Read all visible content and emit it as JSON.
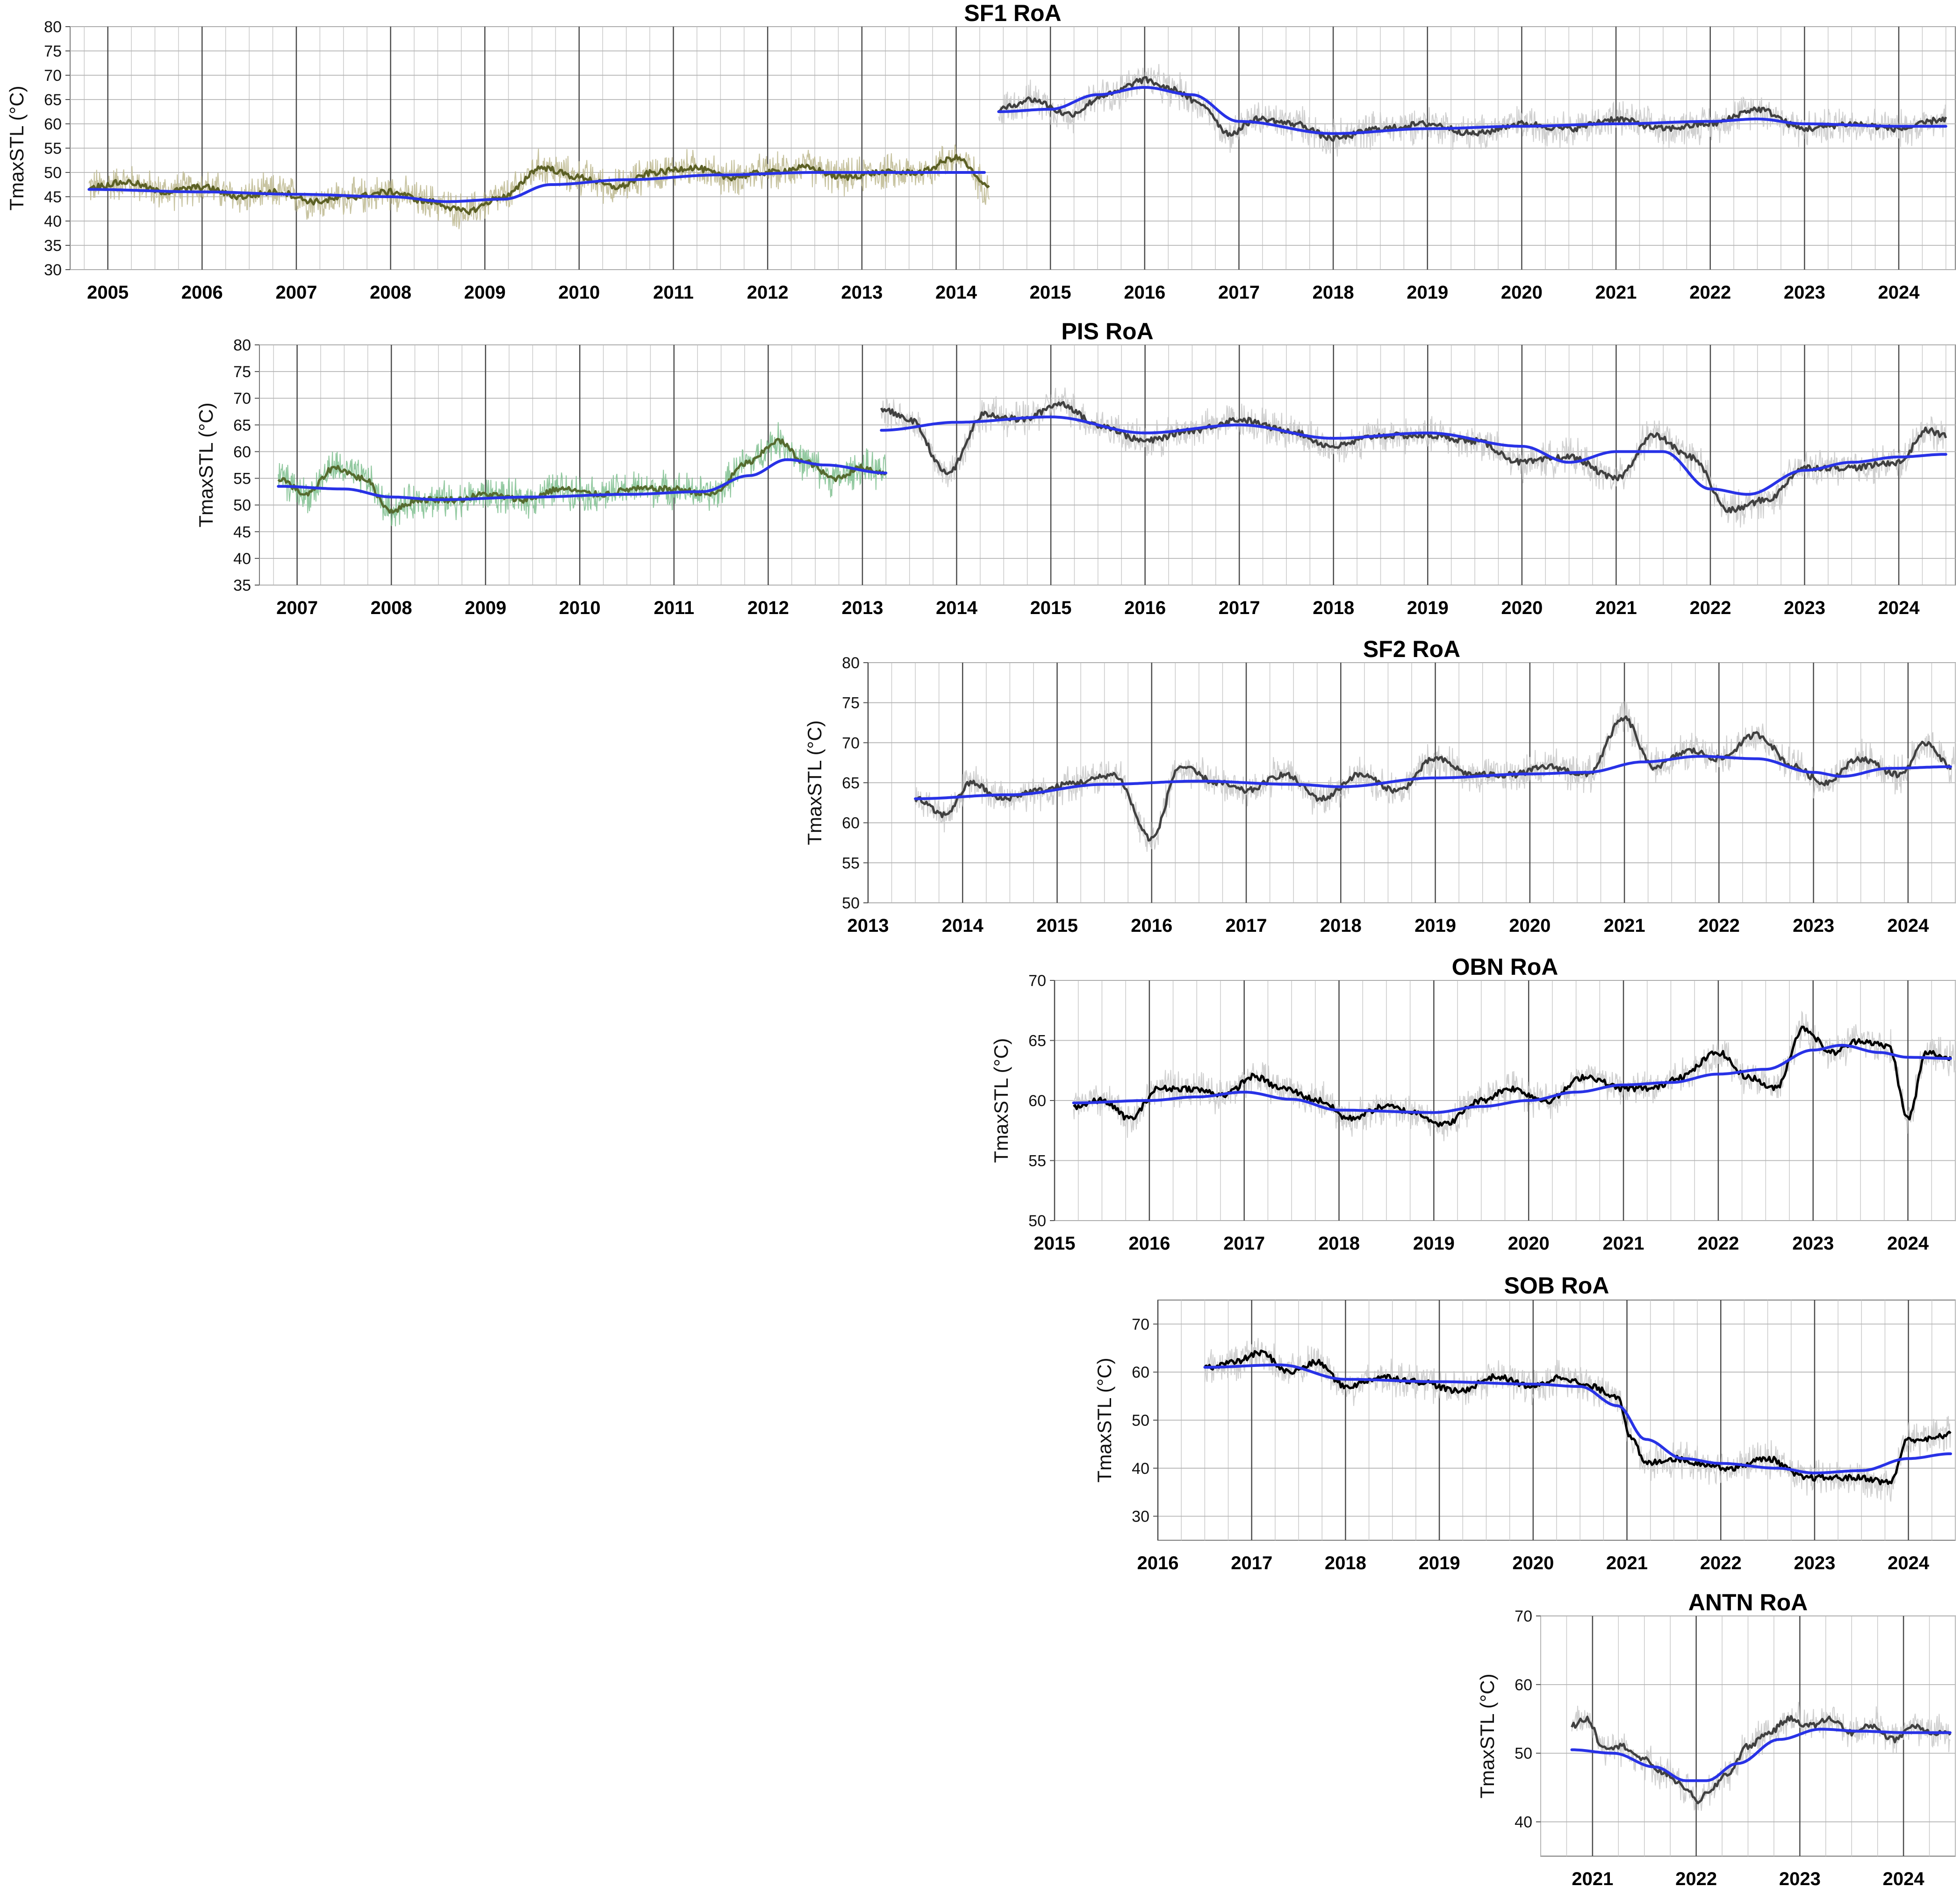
{
  "chart_data": [
    {
      "type": "line",
      "title": "SF1 RoA",
      "ylabel": "TmaxSTL (°C)",
      "xlabel": "",
      "ylim": [
        30,
        80
      ],
      "yticks": [
        30,
        35,
        40,
        45,
        50,
        55,
        60,
        65,
        70,
        75,
        80
      ],
      "xlim": [
        2004.6,
        2024.6
      ],
      "xticks": [
        "2005",
        "2006",
        "2007",
        "2008",
        "2009",
        "2010",
        "2011",
        "2012",
        "2013",
        "2014",
        "2015",
        "2016",
        "2017",
        "2018",
        "2019",
        "2020",
        "2021",
        "2022",
        "2023",
        "2024"
      ],
      "smooth_color": "#2832e6",
      "series": [
        {
          "name": "daily raw (segment 1)",
          "color": "#bdb98f",
          "role": "noise",
          "x": [
            2004.8,
            2014.35
          ]
        },
        {
          "name": "running mean (segment 1)",
          "color": "#5c6025",
          "role": "mean",
          "x": [
            2004.8,
            2005.2,
            2005.6,
            2006.0,
            2006.4,
            2006.8,
            2007.2,
            2007.6,
            2008.0,
            2008.4,
            2008.8,
            2009.2,
            2009.6,
            2010.0,
            2010.4,
            2010.8,
            2011.2,
            2011.6,
            2012.0,
            2012.4,
            2012.8,
            2013.2,
            2013.6,
            2014.0,
            2014.35
          ],
          "values": [
            47,
            48,
            46,
            47,
            45,
            46,
            44,
            45,
            46,
            44,
            42,
            45,
            51,
            49,
            47,
            50,
            51,
            49,
            50,
            51,
            49,
            50,
            50,
            53,
            47
          ]
        },
        {
          "name": "smoothed trend (segment 1)",
          "color": "#2832e6",
          "role": "smooth",
          "x": [
            2004.8,
            2006.0,
            2007.0,
            2008.0,
            2008.6,
            2009.2,
            2009.7,
            2010.5,
            2011.5,
            2012.5,
            2013.5,
            2014.3
          ],
          "values": [
            46.5,
            46,
            45.5,
            45,
            44,
            44.5,
            47.5,
            48.5,
            49.5,
            50,
            50,
            50
          ]
        },
        {
          "name": "daily raw (segment 2)",
          "color": "#c8c8c8",
          "role": "noise",
          "x": [
            2014.45,
            2024.5
          ]
        },
        {
          "name": "running mean (segment 2)",
          "color": "#404040",
          "role": "mean",
          "x": [
            2014.45,
            2014.8,
            2015.2,
            2015.6,
            2016.0,
            2016.3,
            2016.6,
            2016.9,
            2017.2,
            2017.6,
            2018.0,
            2018.5,
            2019.0,
            2019.5,
            2020.0,
            2020.5,
            2021.0,
            2021.5,
            2022.0,
            2022.5,
            2023.0,
            2023.5,
            2024.0,
            2024.5
          ],
          "values": [
            63,
            65,
            62,
            66,
            69,
            67,
            64,
            58,
            61,
            60,
            57,
            59,
            60,
            58,
            60,
            59,
            61,
            59,
            60,
            63,
            59,
            60,
            59,
            61
          ]
        },
        {
          "name": "smoothed trend (segment 2)",
          "color": "#2832e6",
          "role": "smooth",
          "x": [
            2014.45,
            2015.0,
            2015.5,
            2016.0,
            2016.5,
            2017.0,
            2018.0,
            2019.0,
            2020.0,
            2021.0,
            2022.0,
            2022.5,
            2023.0,
            2024.0,
            2024.5
          ],
          "values": [
            62.5,
            63,
            66,
            67.5,
            66,
            60.5,
            58,
            59,
            59.5,
            60,
            60.5,
            61,
            60,
            59.5,
            59.5
          ]
        }
      ]
    },
    {
      "type": "line",
      "title": "PIS RoA",
      "ylabel": "TmaxSTL (°C)",
      "xlabel": "",
      "ylim": [
        35,
        80
      ],
      "yticks": [
        35,
        40,
        45,
        50,
        55,
        60,
        65,
        70,
        75,
        80
      ],
      "xlim": [
        2006.6,
        2024.6
      ],
      "xticks": [
        "2007",
        "2008",
        "2009",
        "2010",
        "2011",
        "2012",
        "2013",
        "2014",
        "2015",
        "2016",
        "2017",
        "2018",
        "2019",
        "2020",
        "2021",
        "2022",
        "2023",
        "2024"
      ],
      "smooth_color": "#2832e6",
      "series": [
        {
          "name": "daily raw (segment 1)",
          "color": "#7fbf8f",
          "role": "noise",
          "x": [
            2006.8,
            2013.25
          ]
        },
        {
          "name": "running mean (segment 1)",
          "color": "#556b2f",
          "role": "mean",
          "x": [
            2006.8,
            2007.1,
            2007.4,
            2007.7,
            2008.0,
            2008.3,
            2008.7,
            2009.0,
            2009.4,
            2009.8,
            2010.2,
            2010.6,
            2011.0,
            2011.4,
            2011.8,
            2012.1,
            2012.4,
            2012.7,
            2013.0,
            2013.25
          ],
          "values": [
            55,
            52,
            57,
            55,
            49,
            51,
            51,
            52,
            51,
            53,
            52,
            53,
            53,
            52,
            58,
            62,
            58,
            55,
            57,
            56
          ]
        },
        {
          "name": "smoothed trend (segment 1)",
          "color": "#2832e6",
          "role": "smooth",
          "x": [
            2006.8,
            2007.5,
            2008.0,
            2008.5,
            2009.5,
            2010.5,
            2011.3,
            2011.8,
            2012.2,
            2012.6,
            2013.25
          ],
          "values": [
            53.5,
            53,
            51.5,
            51,
            51.5,
            52,
            52.5,
            55.5,
            58.5,
            57.5,
            56
          ]
        },
        {
          "name": "daily raw (segment 2)",
          "color": "#c8c8c8",
          "role": "noise",
          "x": [
            2013.2,
            2024.5
          ]
        },
        {
          "name": "running mean (segment 2)",
          "color": "#404040",
          "role": "mean",
          "x": [
            2013.2,
            2013.5,
            2013.9,
            2014.3,
            2014.7,
            2015.1,
            2015.5,
            2016.0,
            2016.5,
            2017.0,
            2017.5,
            2018.0,
            2018.5,
            2019.0,
            2019.5,
            2020.0,
            2020.5,
            2021.0,
            2021.4,
            2021.8,
            2022.2,
            2022.6,
            2023.0,
            2023.5,
            2024.0,
            2024.3,
            2024.5
          ],
          "values": [
            68,
            66,
            56,
            67,
            66,
            69,
            65,
            62,
            64,
            66,
            64,
            61,
            63,
            63,
            62,
            58,
            59,
            55,
            63,
            59,
            49,
            51,
            57,
            57,
            58,
            64,
            63
          ]
        },
        {
          "name": "smoothed trend (segment 2)",
          "color": "#2832e6",
          "role": "smooth",
          "x": [
            2013.2,
            2014.0,
            2015.0,
            2016.0,
            2017.0,
            2018.0,
            2019.0,
            2020.0,
            2020.5,
            2021.0,
            2021.5,
            2022.0,
            2022.4,
            2023.0,
            2023.5,
            2024.0,
            2024.5
          ],
          "values": [
            64,
            65.5,
            66.5,
            63.5,
            65,
            62.5,
            63.5,
            61,
            58,
            60,
            60,
            53,
            52,
            56.5,
            58,
            59,
            59.5
          ]
        }
      ]
    },
    {
      "type": "line",
      "title": "SF2 RoA",
      "ylabel": "TmaxSTL (°C)",
      "xlabel": "",
      "ylim": [
        50,
        80
      ],
      "yticks": [
        50,
        55,
        60,
        65,
        70,
        75,
        80
      ],
      "xlim": [
        2013.0,
        2024.5
      ],
      "xticks": [
        "2013",
        "2014",
        "2015",
        "2016",
        "2017",
        "2018",
        "2019",
        "2020",
        "2021",
        "2022",
        "2023",
        "2024"
      ],
      "smooth_color": "#2832e6",
      "series": [
        {
          "name": "daily raw",
          "color": "#c8c8c8",
          "role": "noise",
          "x": [
            2013.5,
            2024.5
          ]
        },
        {
          "name": "running mean",
          "color": "#404040",
          "role": "mean",
          "x": [
            2013.5,
            2013.8,
            2014.1,
            2014.4,
            2014.8,
            2015.2,
            2015.6,
            2016.0,
            2016.3,
            2016.7,
            2017.0,
            2017.4,
            2017.8,
            2018.2,
            2018.6,
            2019.0,
            2019.4,
            2019.8,
            2020.2,
            2020.6,
            2021.0,
            2021.3,
            2021.7,
            2022.0,
            2022.4,
            2022.8,
            2023.1,
            2023.5,
            2023.9,
            2024.2,
            2024.45
          ],
          "values": [
            63,
            61,
            65,
            63,
            64,
            65,
            66,
            58,
            67,
            65,
            64,
            66,
            63,
            66,
            64,
            68,
            66,
            66,
            67,
            66,
            73,
            67,
            69,
            68,
            71,
            67,
            65,
            68,
            66,
            70,
            67
          ]
        },
        {
          "name": "smoothed trend",
          "color": "#2832e6",
          "role": "smooth",
          "x": [
            2013.5,
            2014.5,
            2015.5,
            2016.5,
            2017.5,
            2018.0,
            2019.0,
            2020.0,
            2020.6,
            2021.2,
            2021.8,
            2022.4,
            2023.0,
            2023.3,
            2023.8,
            2024.45
          ],
          "values": [
            63,
            63.5,
            64.8,
            65.2,
            64.8,
            64.5,
            65.6,
            66.1,
            66.3,
            67.6,
            68.3,
            68,
            66.3,
            65.8,
            66.8,
            67
          ]
        }
      ]
    },
    {
      "type": "line",
      "title": "OBN RoA",
      "ylabel": "TmaxSTL (°C)",
      "xlabel": "",
      "ylim": [
        50,
        70
      ],
      "yticks": [
        50,
        55,
        60,
        65,
        70
      ],
      "xlim": [
        2015.0,
        2024.5
      ],
      "xticks": [
        "2015",
        "2016",
        "2017",
        "2018",
        "2019",
        "2020",
        "2021",
        "2022",
        "2023",
        "2024"
      ],
      "smooth_color": "#2832e6",
      "series": [
        {
          "name": "daily raw",
          "color": "#c8c8c8",
          "role": "noise",
          "x": [
            2015.2,
            2024.5
          ]
        },
        {
          "name": "running mean",
          "color": "#000000",
          "role": "mean",
          "x": [
            2015.2,
            2015.5,
            2015.8,
            2016.1,
            2016.4,
            2016.8,
            2017.1,
            2017.4,
            2017.8,
            2018.1,
            2018.5,
            2018.8,
            2019.1,
            2019.5,
            2019.8,
            2020.2,
            2020.6,
            2021.0,
            2021.3,
            2021.6,
            2022.0,
            2022.3,
            2022.6,
            2022.9,
            2023.2,
            2023.5,
            2023.8,
            2024.0,
            2024.2,
            2024.45
          ],
          "values": [
            59.5,
            60,
            58.5,
            61,
            61,
            60.5,
            62,
            61,
            60,
            58.5,
            59.5,
            59,
            58,
            60,
            61,
            60,
            62,
            61,
            61,
            62,
            64,
            62,
            61,
            66,
            64,
            65,
            64.5,
            58.5,
            64,
            63.5
          ]
        },
        {
          "name": "smoothed trend",
          "color": "#2832e6",
          "role": "smooth",
          "x": [
            2015.2,
            2016.0,
            2016.5,
            2017.0,
            2017.5,
            2018.0,
            2019.0,
            2019.5,
            2020.0,
            2020.5,
            2021.0,
            2021.5,
            2022.0,
            2022.5,
            2023.0,
            2023.3,
            2023.7,
            2024.0,
            2024.45
          ],
          "values": [
            59.8,
            60,
            60.3,
            60.7,
            60.1,
            59.2,
            59,
            59.5,
            60,
            60.7,
            61.3,
            61.5,
            62.2,
            62.6,
            64.2,
            64.6,
            64,
            63.6,
            63.5
          ]
        }
      ]
    },
    {
      "type": "line",
      "title": "SOB RoA",
      "ylabel": "TmaxSTL (°C)",
      "xlabel": "",
      "ylim": [
        25,
        75
      ],
      "yticks": [
        30,
        40,
        50,
        60,
        70
      ],
      "xlim": [
        2016.0,
        2024.5
      ],
      "xticks": [
        "2016",
        "2017",
        "2018",
        "2019",
        "2020",
        "2021",
        "2022",
        "2023",
        "2024"
      ],
      "smooth_color": "#2832e6",
      "series": [
        {
          "name": "daily raw",
          "color": "#c8c8c8",
          "role": "noise",
          "x": [
            2016.5,
            2024.45
          ]
        },
        {
          "name": "running mean",
          "color": "#000000",
          "role": "mean",
          "x": [
            2016.5,
            2016.8,
            2017.1,
            2017.4,
            2017.7,
            2018.0,
            2018.4,
            2018.8,
            2019.2,
            2019.6,
            2020.0,
            2020.3,
            2020.6,
            2020.9,
            2021.05,
            2021.2,
            2021.5,
            2021.8,
            2022.1,
            2022.5,
            2022.9,
            2023.2,
            2023.5,
            2023.8,
            2024.0,
            2024.2,
            2024.45
          ],
          "values": [
            61,
            62,
            64,
            60,
            62,
            57,
            59,
            58,
            56,
            59,
            57,
            59,
            57,
            55,
            46,
            41,
            42,
            41,
            40,
            42,
            38,
            38,
            38,
            37,
            46,
            46,
            47
          ]
        },
        {
          "name": "smoothed trend",
          "color": "#2832e6",
          "role": "smooth",
          "x": [
            2016.5,
            2017.3,
            2018.0,
            2019.0,
            2020.0,
            2020.5,
            2020.9,
            2021.2,
            2021.6,
            2022.0,
            2022.6,
            2023.0,
            2023.5,
            2024.0,
            2024.45
          ],
          "values": [
            61,
            61.5,
            58.5,
            58,
            57.5,
            57,
            53,
            46,
            42,
            41,
            40,
            39,
            39.5,
            42,
            43
          ]
        }
      ]
    },
    {
      "type": "line",
      "title": "ANTN RoA",
      "ylabel": "TmaxSTL (°C)",
      "xlabel": "",
      "ylim": [
        35,
        70
      ],
      "yticks": [
        40,
        50,
        60,
        70
      ],
      "xlim": [
        2020.5,
        2024.5
      ],
      "xticks": [
        "2021",
        "2022",
        "2023",
        "2024"
      ],
      "smooth_color": "#2832e6",
      "series": [
        {
          "name": "daily raw",
          "color": "#c8c8c8",
          "role": "noise",
          "x": [
            2020.8,
            2024.45
          ]
        },
        {
          "name": "running mean",
          "color": "#404040",
          "role": "mean",
          "x": [
            2020.8,
            2020.95,
            2021.1,
            2021.3,
            2021.5,
            2021.7,
            2021.9,
            2022.0,
            2022.1,
            2022.3,
            2022.5,
            2022.7,
            2022.9,
            2023.1,
            2023.3,
            2023.5,
            2023.7,
            2023.9,
            2024.1,
            2024.3,
            2024.45
          ],
          "values": [
            54,
            55,
            51,
            51,
            49,
            47,
            45,
            43,
            44,
            47,
            51,
            53,
            55,
            54,
            55,
            53,
            54,
            52,
            54,
            53,
            53
          ]
        },
        {
          "name": "smoothed trend",
          "color": "#2832e6",
          "role": "smooth",
          "x": [
            2020.8,
            2021.2,
            2021.6,
            2021.9,
            2022.1,
            2022.4,
            2022.8,
            2023.2,
            2023.6,
            2024.0,
            2024.45
          ],
          "values": [
            50.5,
            50,
            48,
            46,
            46,
            48.5,
            52,
            53.5,
            53.2,
            53,
            53
          ]
        }
      ]
    }
  ]
}
